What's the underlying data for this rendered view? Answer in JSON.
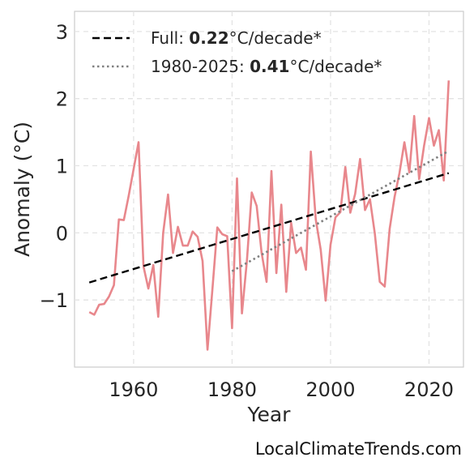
{
  "chart_data": {
    "type": "line",
    "title": "",
    "xlabel": "Year",
    "ylabel": "Anomaly (°C)",
    "xlim": [
      1948,
      2027
    ],
    "ylim": [
      -2.0,
      3.3
    ],
    "xticks": [
      1960,
      1980,
      2000,
      2020
    ],
    "yticks": [
      -1,
      0,
      1,
      2,
      3
    ],
    "ytick_labels": [
      "−1",
      "0",
      "1",
      "2",
      "3"
    ],
    "grid": true,
    "legend_position": "top-left",
    "series": [
      {
        "color": "#e8878c",
        "style": "solid",
        "x": [
          1951,
          1952,
          1953,
          1954,
          1955,
          1956,
          1957,
          1958,
          1959,
          1960,
          1961,
          1962,
          1963,
          1964,
          1965,
          1966,
          1967,
          1968,
          1969,
          1970,
          1971,
          1972,
          1973,
          1974,
          1975,
          1976,
          1977,
          1978,
          1979,
          1980,
          1981,
          1982,
          1983,
          1984,
          1985,
          1986,
          1987,
          1988,
          1989,
          1990,
          1991,
          1992,
          1993,
          1994,
          1995,
          1996,
          1997,
          1998,
          1999,
          2000,
          2001,
          2002,
          2003,
          2004,
          2005,
          2006,
          2007,
          2008,
          2009,
          2010,
          2011,
          2012,
          2013,
          2014,
          2015,
          2016,
          2017,
          2018,
          2019,
          2020,
          2021,
          2022,
          2023,
          2024
        ],
        "y": [
          -1.18,
          -1.22,
          -1.07,
          -1.06,
          -0.95,
          -0.78,
          0.2,
          0.19,
          0.55,
          0.95,
          1.35,
          -0.5,
          -0.83,
          -0.48,
          -1.25,
          0.0,
          0.57,
          -0.3,
          0.09,
          -0.19,
          -0.19,
          0.02,
          -0.06,
          -0.42,
          -1.74,
          -0.85,
          0.08,
          -0.02,
          -0.05,
          -1.42,
          0.81,
          -1.2,
          -0.42,
          0.6,
          0.4,
          -0.3,
          -0.73,
          0.92,
          -0.6,
          0.42,
          -0.88,
          0.15,
          -0.3,
          -0.22,
          -0.55,
          1.21,
          0.2,
          -0.25,
          -1.01,
          -0.18,
          0.23,
          0.31,
          0.98,
          0.3,
          0.58,
          1.1,
          0.34,
          0.5,
          -0.01,
          -0.73,
          -0.8,
          0.06,
          0.53,
          0.89,
          1.35,
          0.9,
          1.74,
          0.8,
          1.3,
          1.71,
          1.3,
          1.53,
          0.78,
          2.27
        ]
      },
      {
        "color": "#000000",
        "style": "dashed",
        "x": [
          1951,
          2024
        ],
        "y": [
          -0.74,
          0.89
        ]
      },
      {
        "color": "#808080",
        "style": "dotted",
        "x": [
          1980,
          2024
        ],
        "y": [
          -0.57,
          1.22
        ]
      }
    ],
    "legend": [
      {
        "prefix": "Full: ",
        "value": "0.22",
        "suffix": "°C/decade*",
        "style": "dashed",
        "color": "#000000"
      },
      {
        "prefix": "1980-2025: ",
        "value": "0.41",
        "suffix": "°C/decade*",
        "style": "dotted",
        "color": "#808080"
      }
    ]
  },
  "watermark": "LocalClimateTrends.com"
}
